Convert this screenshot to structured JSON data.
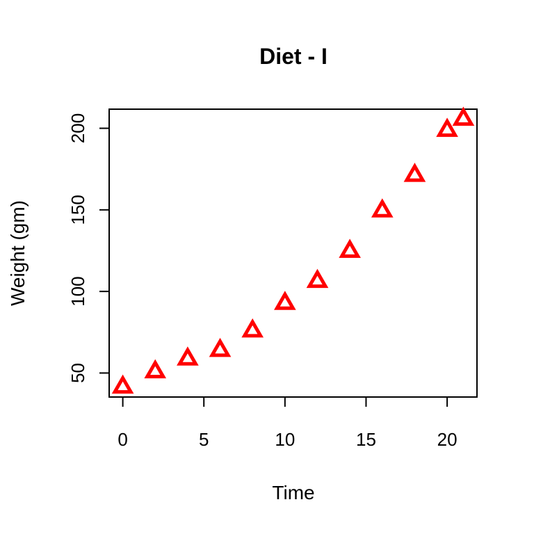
{
  "chart_data": {
    "type": "scatter",
    "title": "Diet - I",
    "xlabel": "Time",
    "ylabel": "Weight (gm)",
    "xlim": [
      -0.84,
      21.84
    ],
    "ylim": [
      35.28,
      211.72
    ],
    "xticks": [
      0,
      5,
      10,
      15,
      20
    ],
    "yticks": [
      50,
      100,
      150,
      200
    ],
    "marker": "triangle-open",
    "color": "#ff0000",
    "grid": false,
    "series": [
      {
        "x": [
          0,
          2,
          4,
          6,
          8,
          10,
          12,
          14,
          16,
          18,
          20,
          21
        ],
        "y": [
          41.4,
          50.8,
          58.6,
          63.9,
          75.8,
          92.7,
          106.2,
          124.6,
          149.4,
          171.2,
          198.8,
          205.6
        ]
      }
    ]
  }
}
